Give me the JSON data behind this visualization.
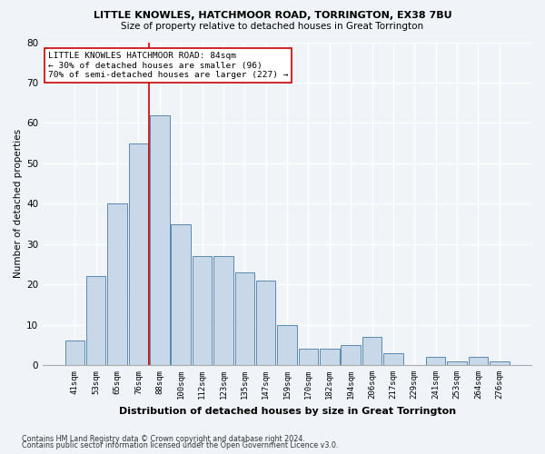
{
  "title1": "LITTLE KNOWLES, HATCHMOOR ROAD, TORRINGTON, EX38 7BU",
  "title2": "Size of property relative to detached houses in Great Torrington",
  "xlabel": "Distribution of detached houses by size in Great Torrington",
  "ylabel": "Number of detached properties",
  "categories": [
    "41sqm",
    "53sqm",
    "65sqm",
    "76sqm",
    "88sqm",
    "100sqm",
    "112sqm",
    "123sqm",
    "135sqm",
    "147sqm",
    "159sqm",
    "170sqm",
    "182sqm",
    "194sqm",
    "206sqm",
    "217sqm",
    "229sqm",
    "241sqm",
    "253sqm",
    "264sqm",
    "276sqm"
  ],
  "values": [
    6,
    22,
    40,
    55,
    62,
    35,
    27,
    27,
    23,
    21,
    10,
    4,
    4,
    5,
    7,
    3,
    0,
    2,
    1,
    2,
    1
  ],
  "bar_color": "#c8d8e8",
  "bar_edge_color": "#5a8ab0",
  "ylim": [
    0,
    80
  ],
  "yticks": [
    0,
    10,
    20,
    30,
    40,
    50,
    60,
    70,
    80
  ],
  "annotation_line1": "LITTLE KNOWLES HATCHMOOR ROAD: 84sqm",
  "annotation_line2": "← 30% of detached houses are smaller (96)",
  "annotation_line3": "70% of semi-detached houses are larger (227) →",
  "footer1": "Contains HM Land Registry data © Crown copyright and database right 2024.",
  "footer2": "Contains public sector information licensed under the Open Government Licence v3.0.",
  "grid_color": "#d0d8e0",
  "red_line_color": "#cc0000",
  "box_edge_color": "#cc0000",
  "bg_color": "#f0f4f8"
}
